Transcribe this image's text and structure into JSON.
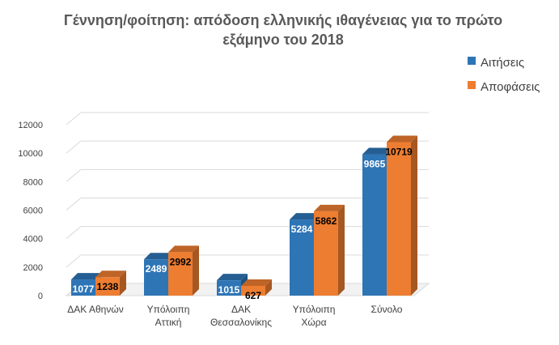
{
  "chart_data": {
    "type": "bar",
    "title_lines": [
      "Γέννηση/φοίτηση: απόδοση ελληνικής ιθαγένειας για το πρώτο",
      "εξάμηνο του 2018"
    ],
    "categories": [
      [
        "ΔΑΚ Αθηνών"
      ],
      [
        "Υπόλοιπη",
        "Αττική"
      ],
      [
        "ΔΑΚ",
        "Θεσσαλονίκης"
      ],
      [
        "Υπόλοιπη",
        "Χώρα"
      ],
      [
        "Σύνολο"
      ]
    ],
    "series": [
      {
        "name": "Αιτήσεις",
        "color": "#2E75B6",
        "values": [
          1077,
          2489,
          1015,
          5284,
          9865
        ]
      },
      {
        "name": "Αποφάσεις",
        "color": "#ED7D31",
        "values": [
          1238,
          2992,
          627,
          5862,
          10719
        ]
      }
    ],
    "ylim": [
      0,
      12000
    ],
    "yticks": [
      0,
      2000,
      4000,
      6000,
      8000,
      10000,
      12000
    ],
    "grid": true,
    "legend_position": "top-right",
    "bar_style": "3d"
  }
}
